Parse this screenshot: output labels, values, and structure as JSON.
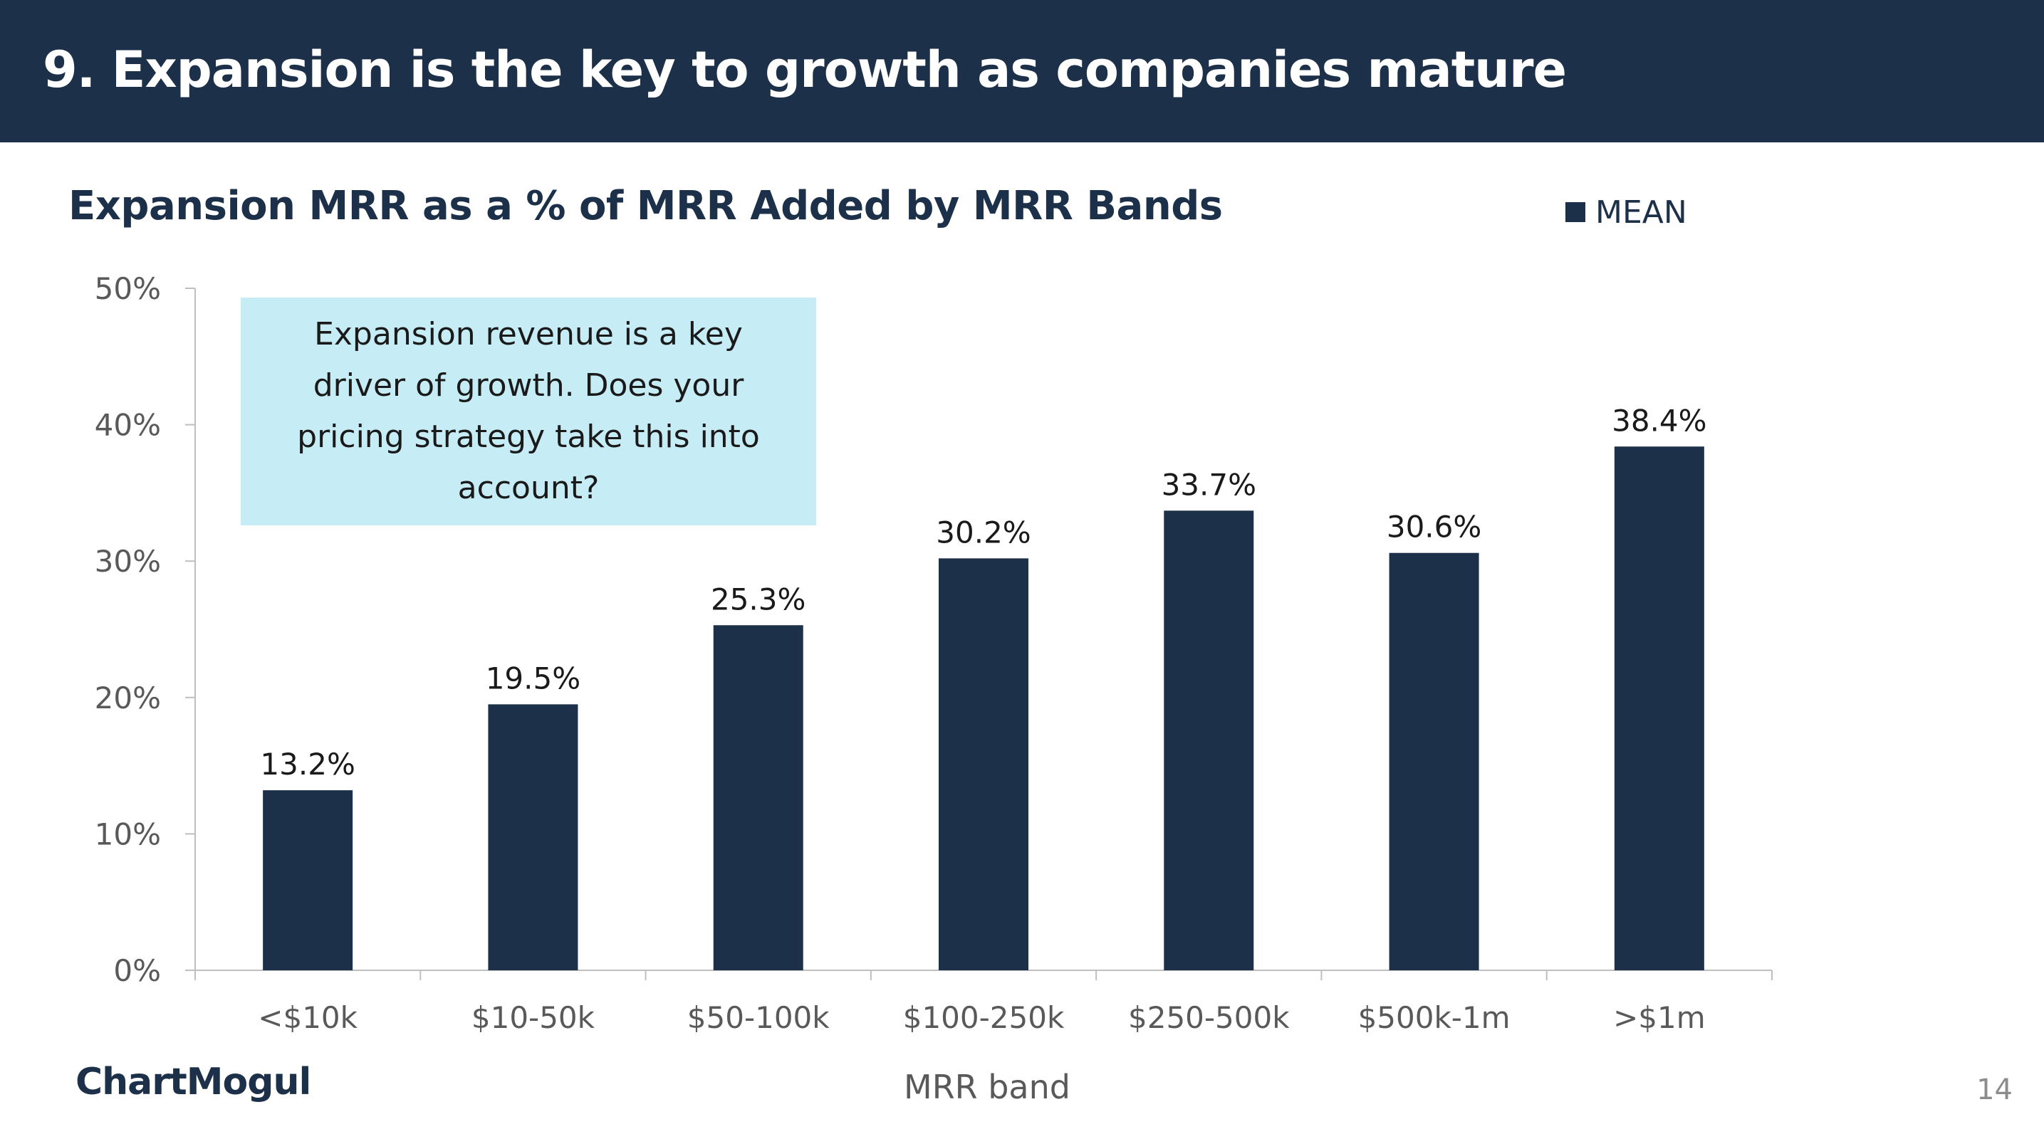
{
  "header": {
    "title": "9. Expansion is the key to growth as companies mature"
  },
  "callout": {
    "text": "Expansion revenue is a key driver of growth. Does your pricing strategy take this into account?"
  },
  "footer": {
    "logo_text": "ChartMogul",
    "page_number": "14"
  },
  "colors": {
    "header_bg": "#1d3049",
    "bar": "#1d3049",
    "callout_bg": "#c6ecf6"
  },
  "chart_data": {
    "type": "bar",
    "title": "Expansion MRR as a % of MRR Added by MRR Bands",
    "xlabel": "MRR band",
    "ylabel": "",
    "categories": [
      "<$10k",
      "$10-50k",
      "$50-100k",
      "$100-250k",
      "$250-500k",
      "$500k-1m",
      ">$1m"
    ],
    "series": [
      {
        "name": "MEAN",
        "values": [
          13.2,
          19.5,
          25.3,
          30.2,
          33.7,
          30.6,
          38.4
        ],
        "labels": [
          "13.2%",
          "19.5%",
          "25.3%",
          "30.2%",
          "33.7%",
          "30.6%",
          "38.4%"
        ]
      }
    ],
    "ylim": [
      0,
      50
    ],
    "yticks": [
      "0%",
      "10%",
      "20%",
      "30%",
      "40%",
      "50%"
    ],
    "legend_position": "top-right",
    "grid": false
  }
}
